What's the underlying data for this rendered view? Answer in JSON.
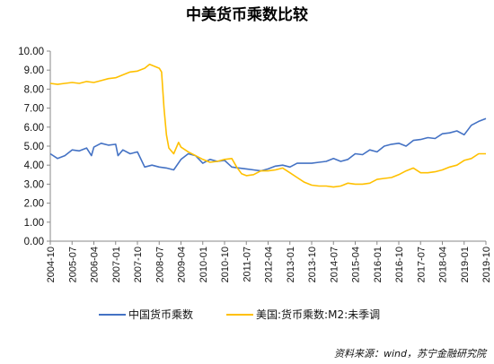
{
  "chart_data": {
    "type": "line",
    "title": "中美货币乘数比较",
    "xlabel": "",
    "ylabel": "",
    "ylim": [
      0,
      10
    ],
    "yticks": [
      "0.00",
      "1.00",
      "2.00",
      "3.00",
      "4.00",
      "5.00",
      "6.00",
      "7.00",
      "8.00",
      "9.00",
      "10.00"
    ],
    "xlim": [
      "2004-10",
      "2019-10"
    ],
    "xticks": [
      "2004-10",
      "2005-07",
      "2006-04",
      "2007-01",
      "2007-10",
      "2008-07",
      "2009-04",
      "2010-01",
      "2010-10",
      "2011-07",
      "2012-04",
      "2013-01",
      "2013-10",
      "2014-07",
      "2015-04",
      "2016-01",
      "2016-10",
      "2017-07",
      "2018-04",
      "2019-01",
      "2019-10"
    ],
    "legend_position": "bottom",
    "grid": false,
    "series": [
      {
        "name": "中国货币乘数",
        "color": "#4472C4",
        "points": [
          [
            "2004-10",
            4.6
          ],
          [
            "2005-01",
            4.35
          ],
          [
            "2005-04",
            4.5
          ],
          [
            "2005-07",
            4.8
          ],
          [
            "2005-10",
            4.75
          ],
          [
            "2006-01",
            4.9
          ],
          [
            "2006-03",
            4.5
          ],
          [
            "2006-04",
            4.95
          ],
          [
            "2006-07",
            5.15
          ],
          [
            "2006-10",
            5.05
          ],
          [
            "2007-01",
            5.1
          ],
          [
            "2007-02",
            4.5
          ],
          [
            "2007-04",
            4.8
          ],
          [
            "2007-07",
            4.6
          ],
          [
            "2007-10",
            4.7
          ],
          [
            "2008-01",
            3.9
          ],
          [
            "2008-04",
            4.0
          ],
          [
            "2008-07",
            3.9
          ],
          [
            "2008-10",
            3.85
          ],
          [
            "2009-01",
            3.75
          ],
          [
            "2009-04",
            4.3
          ],
          [
            "2009-07",
            4.6
          ],
          [
            "2009-10",
            4.5
          ],
          [
            "2010-01",
            4.1
          ],
          [
            "2010-04",
            4.3
          ],
          [
            "2010-07",
            4.2
          ],
          [
            "2010-10",
            4.25
          ],
          [
            "2011-01",
            3.9
          ],
          [
            "2011-04",
            3.85
          ],
          [
            "2011-07",
            3.8
          ],
          [
            "2011-10",
            3.75
          ],
          [
            "2012-01",
            3.7
          ],
          [
            "2012-04",
            3.8
          ],
          [
            "2012-07",
            3.95
          ],
          [
            "2012-10",
            4.0
          ],
          [
            "2013-01",
            3.9
          ],
          [
            "2013-04",
            4.1
          ],
          [
            "2013-07",
            4.1
          ],
          [
            "2013-10",
            4.1
          ],
          [
            "2014-01",
            4.15
          ],
          [
            "2014-04",
            4.2
          ],
          [
            "2014-07",
            4.35
          ],
          [
            "2014-10",
            4.2
          ],
          [
            "2015-01",
            4.3
          ],
          [
            "2015-04",
            4.6
          ],
          [
            "2015-07",
            4.55
          ],
          [
            "2015-10",
            4.8
          ],
          [
            "2016-01",
            4.7
          ],
          [
            "2016-04",
            5.0
          ],
          [
            "2016-07",
            5.1
          ],
          [
            "2016-10",
            5.15
          ],
          [
            "2017-01",
            5.0
          ],
          [
            "2017-04",
            5.3
          ],
          [
            "2017-07",
            5.35
          ],
          [
            "2017-10",
            5.45
          ],
          [
            "2018-01",
            5.4
          ],
          [
            "2018-04",
            5.65
          ],
          [
            "2018-07",
            5.7
          ],
          [
            "2018-10",
            5.8
          ],
          [
            "2019-01",
            5.6
          ],
          [
            "2019-04",
            6.1
          ],
          [
            "2019-07",
            6.3
          ],
          [
            "2019-10",
            6.45
          ]
        ]
      },
      {
        "name": "美国:货币乘数:M2:未季调",
        "color": "#FFC000",
        "points": [
          [
            "2004-10",
            8.3
          ],
          [
            "2005-01",
            8.25
          ],
          [
            "2005-04",
            8.3
          ],
          [
            "2005-07",
            8.35
          ],
          [
            "2005-10",
            8.3
          ],
          [
            "2006-01",
            8.4
          ],
          [
            "2006-04",
            8.35
          ],
          [
            "2006-07",
            8.45
          ],
          [
            "2006-10",
            8.55
          ],
          [
            "2007-01",
            8.6
          ],
          [
            "2007-04",
            8.75
          ],
          [
            "2007-07",
            8.9
          ],
          [
            "2007-10",
            8.95
          ],
          [
            "2008-01",
            9.1
          ],
          [
            "2008-03",
            9.3
          ],
          [
            "2008-07",
            9.1
          ],
          [
            "2008-08",
            8.9
          ],
          [
            "2008-09",
            7.0
          ],
          [
            "2008-10",
            5.6
          ],
          [
            "2008-11",
            4.9
          ],
          [
            "2009-01",
            4.6
          ],
          [
            "2009-03",
            5.2
          ],
          [
            "2009-04",
            4.95
          ],
          [
            "2009-07",
            4.7
          ],
          [
            "2009-10",
            4.5
          ],
          [
            "2010-01",
            4.3
          ],
          [
            "2010-04",
            4.15
          ],
          [
            "2010-07",
            4.2
          ],
          [
            "2010-10",
            4.3
          ],
          [
            "2011-01",
            4.35
          ],
          [
            "2011-03",
            3.9
          ],
          [
            "2011-05",
            3.55
          ],
          [
            "2011-07",
            3.45
          ],
          [
            "2011-10",
            3.5
          ],
          [
            "2012-01",
            3.7
          ],
          [
            "2012-04",
            3.7
          ],
          [
            "2012-07",
            3.75
          ],
          [
            "2012-10",
            3.85
          ],
          [
            "2013-01",
            3.6
          ],
          [
            "2013-04",
            3.35
          ],
          [
            "2013-07",
            3.1
          ],
          [
            "2013-10",
            2.95
          ],
          [
            "2014-01",
            2.9
          ],
          [
            "2014-04",
            2.9
          ],
          [
            "2014-07",
            2.85
          ],
          [
            "2014-10",
            2.9
          ],
          [
            "2015-01",
            3.05
          ],
          [
            "2015-04",
            3.0
          ],
          [
            "2015-07",
            3.0
          ],
          [
            "2015-10",
            3.05
          ],
          [
            "2016-01",
            3.25
          ],
          [
            "2016-04",
            3.3
          ],
          [
            "2016-07",
            3.35
          ],
          [
            "2016-10",
            3.5
          ],
          [
            "2017-01",
            3.7
          ],
          [
            "2017-04",
            3.85
          ],
          [
            "2017-07",
            3.6
          ],
          [
            "2017-10",
            3.6
          ],
          [
            "2018-01",
            3.65
          ],
          [
            "2018-04",
            3.75
          ],
          [
            "2018-07",
            3.9
          ],
          [
            "2018-10",
            4.0
          ],
          [
            "2019-01",
            4.25
          ],
          [
            "2019-04",
            4.35
          ],
          [
            "2019-07",
            4.6
          ],
          [
            "2019-10",
            4.6
          ]
        ]
      }
    ],
    "source": "资料来源：wind，苏宁金融研究院"
  }
}
